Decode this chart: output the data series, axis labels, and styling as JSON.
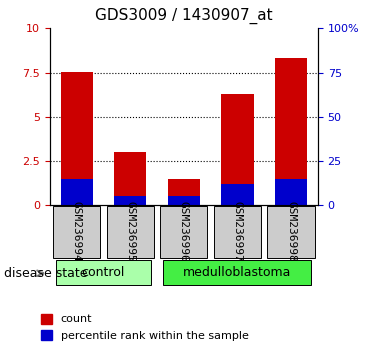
{
  "title": "GDS3009 / 1430907_at",
  "categories": [
    "GSM236994",
    "GSM236995",
    "GSM236996",
    "GSM236997",
    "GSM236998"
  ],
  "count_values": [
    7.55,
    3.0,
    1.5,
    6.3,
    8.35
  ],
  "percentile_values": [
    15,
    5,
    5,
    12,
    15
  ],
  "left_ylim": [
    0,
    10
  ],
  "right_ylim": [
    0,
    100
  ],
  "left_yticks": [
    0,
    2.5,
    5.0,
    7.5,
    10
  ],
  "right_yticks": [
    0,
    25,
    50,
    75,
    100
  ],
  "left_yticklabels": [
    "0",
    "2.5",
    "5",
    "7.5",
    "10"
  ],
  "right_yticklabels": [
    "0",
    "25",
    "50",
    "75",
    "100%"
  ],
  "bar_color": "#cc0000",
  "percentile_color": "#0000cc",
  "bar_width": 0.6,
  "groups": [
    {
      "label": "control",
      "indices": [
        0,
        1
      ],
      "color": "#aaffaa"
    },
    {
      "label": "medulloblastoma",
      "indices": [
        2,
        3,
        4
      ],
      "color": "#44ee44"
    }
  ],
  "disease_state_label": "disease state",
  "legend_count_label": "count",
  "legend_percentile_label": "percentile rank within the sample",
  "bg_color": "#ffffff",
  "tick_bg_color": "#cccccc",
  "title_fontsize": 11,
  "tick_fontsize": 8,
  "label_fontsize": 9
}
